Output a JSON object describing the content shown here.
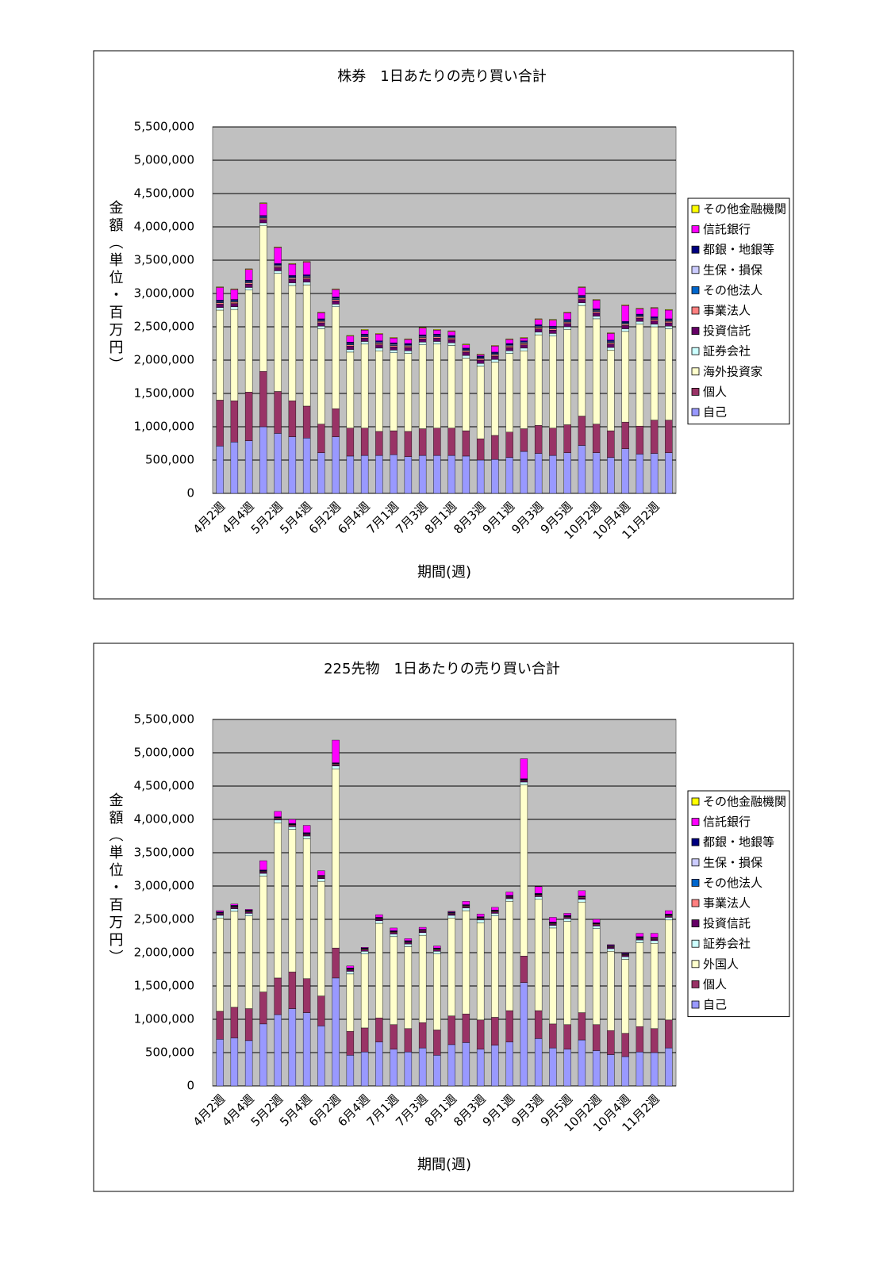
{
  "chart_data": [
    {
      "type": "stacked-bar",
      "title": "株券　1日あたりの売り買い合計",
      "x_label": "期間(週)",
      "y_label": "金額（単位・百万円）",
      "categories": [
        "4月2週",
        null,
        "4月4週",
        null,
        "5月2週",
        null,
        "5月4週",
        null,
        "6月2週",
        null,
        "6月4週",
        null,
        "7月1週",
        null,
        "7月3週",
        null,
        "8月1週",
        null,
        "8月3週",
        null,
        "9月1週",
        null,
        "9月3週",
        null,
        "9月5週",
        null,
        "10月2週",
        null,
        "10月4週",
        null,
        "11月2週",
        null
      ],
      "ylim": [
        0,
        5500000
      ],
      "yticks": [
        0,
        {
          "value": 500000,
          "label": "500,000"
        },
        {
          "value": 1000000,
          "label": "1,000,000"
        },
        {
          "value": 1500000,
          "label": "1,500,000"
        },
        {
          "value": 2000000,
          "label": "2,000,000"
        },
        {
          "value": 2500000,
          "label": "2,500,000"
        },
        {
          "value": 3000000,
          "label": "3,000,000"
        },
        {
          "value": 3500000,
          "label": "3,500,000"
        },
        {
          "value": 4000000,
          "label": "4,000,000"
        },
        {
          "value": 4500000,
          "label": "4,500,000"
        },
        {
          "value": 5000000,
          "label": "5,000,000"
        },
        {
          "value": 5500000,
          "label": "5,500,000"
        }
      ],
      "grid": true,
      "legend": "right",
      "series": [
        {
          "name": "自己",
          "color": "#9999ff",
          "values": [
            710000,
            770000,
            790000,
            1000000,
            900000,
            850000,
            830000,
            610000,
            850000,
            560000,
            570000,
            570000,
            580000,
            550000,
            570000,
            570000,
            570000,
            560000,
            500000,
            510000,
            540000,
            630000,
            600000,
            570000,
            610000,
            720000,
            610000,
            540000,
            670000,
            590000,
            600000,
            610000
          ]
        },
        {
          "name": "個人",
          "color": "#993366",
          "values": [
            690000,
            620000,
            730000,
            830000,
            630000,
            540000,
            480000,
            430000,
            420000,
            420000,
            410000,
            360000,
            360000,
            380000,
            400000,
            410000,
            410000,
            380000,
            320000,
            360000,
            380000,
            340000,
            420000,
            410000,
            420000,
            440000,
            430000,
            400000,
            400000,
            420000,
            500000,
            490000
          ]
        },
        {
          "name": "海外投資家",
          "color": "#ffffcc",
          "values": [
            1350000,
            1370000,
            1530000,
            2190000,
            1770000,
            1730000,
            1820000,
            1430000,
            1530000,
            1140000,
            1260000,
            1210000,
            1170000,
            1170000,
            1260000,
            1260000,
            1240000,
            1090000,
            1090000,
            1100000,
            1180000,
            1170000,
            1360000,
            1380000,
            1430000,
            1660000,
            1580000,
            1210000,
            1360000,
            1530000,
            1400000,
            1370000
          ]
        },
        {
          "name": "証券会社",
          "color": "#ccffff",
          "values": [
            40000,
            40000,
            40000,
            40000,
            40000,
            40000,
            40000,
            40000,
            40000,
            40000,
            40000,
            40000,
            40000,
            40000,
            40000,
            40000,
            40000,
            40000,
            40000,
            40000,
            40000,
            40000,
            40000,
            40000,
            40000,
            40000,
            40000,
            40000,
            40000,
            40000,
            40000,
            40000
          ]
        },
        {
          "name": "投資信託",
          "color": "#660066",
          "values": [
            50000,
            50000,
            50000,
            50000,
            50000,
            50000,
            50000,
            50000,
            50000,
            50000,
            50000,
            50000,
            50000,
            50000,
            50000,
            50000,
            50000,
            50000,
            50000,
            50000,
            50000,
            50000,
            50000,
            50000,
            50000,
            50000,
            50000,
            50000,
            50000,
            50000,
            50000,
            50000
          ]
        },
        {
          "name": "事業法人",
          "color": "#ff8080",
          "values": [
            20000,
            20000,
            20000,
            20000,
            20000,
            20000,
            20000,
            20000,
            20000,
            20000,
            20000,
            20000,
            20000,
            20000,
            20000,
            20000,
            20000,
            20000,
            20000,
            20000,
            20000,
            20000,
            20000,
            20000,
            20000,
            20000,
            20000,
            20000,
            20000,
            20000,
            20000,
            20000
          ]
        },
        {
          "name": "その他法人",
          "color": "#0066cc",
          "values": [
            10000,
            10000,
            10000,
            10000,
            10000,
            10000,
            10000,
            10000,
            10000,
            10000,
            10000,
            10000,
            10000,
            10000,
            10000,
            10000,
            10000,
            10000,
            10000,
            10000,
            10000,
            10000,
            10000,
            10000,
            10000,
            10000,
            10000,
            10000,
            10000,
            10000,
            10000,
            10000
          ]
        },
        {
          "name": "生保・損保",
          "color": "#ccccff",
          "values": [
            10000,
            10000,
            10000,
            10000,
            10000,
            10000,
            10000,
            10000,
            10000,
            10000,
            10000,
            10000,
            10000,
            10000,
            10000,
            10000,
            10000,
            10000,
            10000,
            10000,
            10000,
            10000,
            10000,
            10000,
            10000,
            10000,
            10000,
            10000,
            10000,
            10000,
            10000,
            10000
          ]
        },
        {
          "name": "都銀・地銀等",
          "color": "#000080",
          "values": [
            20000,
            20000,
            20000,
            20000,
            20000,
            20000,
            20000,
            20000,
            20000,
            20000,
            20000,
            20000,
            20000,
            20000,
            20000,
            20000,
            20000,
            20000,
            20000,
            20000,
            20000,
            20000,
            20000,
            20000,
            20000,
            20000,
            20000,
            20000,
            20000,
            20000,
            20000,
            20000
          ]
        },
        {
          "name": "信託銀行",
          "color": "#ff00ff",
          "values": [
            190000,
            150000,
            160000,
            180000,
            240000,
            170000,
            190000,
            90000,
            110000,
            90000,
            60000,
            100000,
            70000,
            60000,
            100000,
            60000,
            60000,
            50000,
            20000,
            90000,
            60000,
            40000,
            80000,
            90000,
            100000,
            120000,
            130000,
            100000,
            240000,
            80000,
            130000,
            130000
          ]
        },
        {
          "name": "その他金融機関",
          "color": "#ffff00",
          "values": [
            10000,
            10000,
            10000,
            10000,
            10000,
            10000,
            10000,
            10000,
            10000,
            10000,
            10000,
            10000,
            10000,
            10000,
            10000,
            10000,
            10000,
            10000,
            10000,
            10000,
            10000,
            10000,
            10000,
            10000,
            10000,
            10000,
            10000,
            10000,
            10000,
            10000,
            10000,
            10000
          ]
        }
      ]
    },
    {
      "type": "stacked-bar",
      "title": "225先物　1日あたりの売り買い合計",
      "x_label": "期間(週)",
      "y_label": "金額（単位・百万円）",
      "categories": [
        "4月2週",
        null,
        "4月4週",
        null,
        "5月2週",
        null,
        "5月4週",
        null,
        "6月2週",
        null,
        "6月4週",
        null,
        "7月1週",
        null,
        "7月3週",
        null,
        "8月1週",
        null,
        "8月3週",
        null,
        "9月1週",
        null,
        "9月3週",
        null,
        "9月5週",
        null,
        "10月2週",
        null,
        "10月4週",
        null,
        "11月2週",
        null
      ],
      "ylim": [
        0,
        5500000
      ],
      "yticks": [
        0,
        {
          "value": 500000,
          "label": "500,000"
        },
        {
          "value": 1000000,
          "label": "1,000,000"
        },
        {
          "value": 1500000,
          "label": "1,500,000"
        },
        {
          "value": 2000000,
          "label": "2,000,000"
        },
        {
          "value": 2500000,
          "label": "2,500,000"
        },
        {
          "value": 3000000,
          "label": "3,000,000"
        },
        {
          "value": 3500000,
          "label": "3,500,000"
        },
        {
          "value": 4000000,
          "label": "4,000,000"
        },
        {
          "value": 4500000,
          "label": "4,500,000"
        },
        {
          "value": 5000000,
          "label": "5,000,000"
        },
        {
          "value": 5500000,
          "label": "5,500,000"
        }
      ],
      "grid": true,
      "legend": "right",
      "series": [
        {
          "name": "自己",
          "color": "#9999ff",
          "values": [
            700000,
            720000,
            680000,
            930000,
            1070000,
            1160000,
            1100000,
            900000,
            1620000,
            460000,
            510000,
            660000,
            550000,
            510000,
            570000,
            460000,
            620000,
            650000,
            550000,
            610000,
            660000,
            1550000,
            710000,
            570000,
            550000,
            690000,
            530000,
            470000,
            440000,
            510000,
            500000,
            570000
          ]
        },
        {
          "name": "個人",
          "color": "#993366",
          "values": [
            420000,
            460000,
            480000,
            480000,
            550000,
            550000,
            510000,
            450000,
            450000,
            360000,
            360000,
            360000,
            370000,
            350000,
            380000,
            380000,
            430000,
            430000,
            440000,
            420000,
            470000,
            400000,
            420000,
            360000,
            370000,
            410000,
            390000,
            360000,
            350000,
            380000,
            360000,
            420000
          ]
        },
        {
          "name": "外国人",
          "color": "#ffffcc",
          "values": [
            1400000,
            1440000,
            1390000,
            1740000,
            2330000,
            2140000,
            2100000,
            1720000,
            2690000,
            860000,
            1110000,
            1420000,
            1320000,
            1230000,
            1310000,
            1140000,
            1470000,
            1550000,
            1460000,
            1520000,
            1640000,
            2570000,
            1670000,
            1440000,
            1550000,
            1660000,
            1440000,
            1190000,
            1110000,
            1260000,
            1280000,
            1500000
          ]
        },
        {
          "name": "証券会社",
          "color": "#ccffff",
          "values": [
            40000,
            40000,
            40000,
            40000,
            40000,
            40000,
            40000,
            40000,
            40000,
            40000,
            40000,
            40000,
            40000,
            40000,
            40000,
            40000,
            40000,
            40000,
            40000,
            40000,
            40000,
            40000,
            40000,
            40000,
            40000,
            40000,
            40000,
            40000,
            40000,
            40000,
            40000,
            40000
          ]
        },
        {
          "name": "投資信託",
          "color": "#660066",
          "values": [
            20000,
            20000,
            20000,
            20000,
            20000,
            20000,
            20000,
            20000,
            20000,
            20000,
            20000,
            20000,
            20000,
            20000,
            20000,
            20000,
            20000,
            20000,
            20000,
            20000,
            20000,
            20000,
            20000,
            20000,
            20000,
            20000,
            20000,
            20000,
            20000,
            20000,
            20000,
            20000
          ]
        },
        {
          "name": "事業法人",
          "color": "#ff8080",
          "values": [
            10000,
            10000,
            10000,
            10000,
            10000,
            10000,
            10000,
            10000,
            10000,
            10000,
            10000,
            10000,
            10000,
            10000,
            10000,
            10000,
            10000,
            10000,
            10000,
            10000,
            10000,
            10000,
            10000,
            10000,
            10000,
            10000,
            10000,
            10000,
            10000,
            10000,
            10000,
            10000
          ]
        },
        {
          "name": "その他法人",
          "color": "#0066cc",
          "values": [
            5000,
            5000,
            5000,
            5000,
            5000,
            5000,
            5000,
            5000,
            5000,
            5000,
            5000,
            5000,
            5000,
            5000,
            5000,
            5000,
            5000,
            5000,
            5000,
            5000,
            5000,
            5000,
            5000,
            5000,
            5000,
            5000,
            5000,
            5000,
            5000,
            5000,
            5000,
            5000
          ]
        },
        {
          "name": "生保・損保",
          "color": "#ccccff",
          "values": [
            5000,
            5000,
            5000,
            5000,
            5000,
            5000,
            5000,
            5000,
            5000,
            5000,
            5000,
            5000,
            5000,
            5000,
            5000,
            5000,
            5000,
            5000,
            5000,
            5000,
            5000,
            5000,
            5000,
            5000,
            5000,
            5000,
            5000,
            5000,
            5000,
            5000,
            5000,
            5000
          ]
        },
        {
          "name": "都銀・地銀等",
          "color": "#000080",
          "values": [
            10000,
            10000,
            10000,
            10000,
            10000,
            10000,
            10000,
            10000,
            10000,
            10000,
            10000,
            10000,
            10000,
            10000,
            10000,
            10000,
            10000,
            10000,
            10000,
            10000,
            10000,
            10000,
            10000,
            10000,
            10000,
            10000,
            10000,
            10000,
            10000,
            10000,
            10000,
            10000
          ]
        },
        {
          "name": "信託銀行",
          "color": "#ff00ff",
          "values": [
            20000,
            20000,
            10000,
            140000,
            80000,
            60000,
            110000,
            70000,
            340000,
            30000,
            10000,
            40000,
            40000,
            30000,
            30000,
            30000,
            10000,
            50000,
            40000,
            40000,
            50000,
            300000,
            100000,
            70000,
            30000,
            80000,
            50000,
            10000,
            10000,
            50000,
            60000,
            50000
          ]
        },
        {
          "name": "その他金融機関",
          "color": "#ffff00",
          "values": [
            0,
            0,
            0,
            0,
            0,
            0,
            0,
            0,
            0,
            0,
            0,
            0,
            0,
            0,
            0,
            0,
            0,
            0,
            0,
            0,
            0,
            0,
            0,
            0,
            0,
            0,
            0,
            0,
            0,
            0,
            0,
            0
          ]
        }
      ]
    }
  ]
}
